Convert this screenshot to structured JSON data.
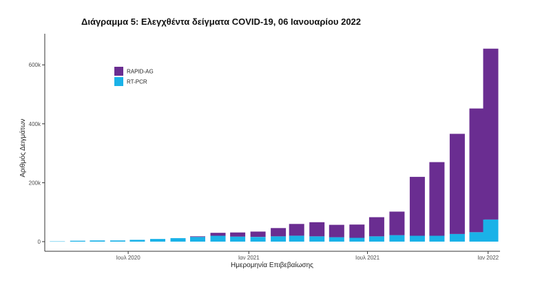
{
  "chart_data": {
    "type": "bar",
    "title": "Διάγραμμα 5: Ελεγχθέντα δείγματα COVID-19, 06 Ιανουαρίου 2022",
    "xlabel": "Ημερομηνία Επιβεβαίωσης",
    "ylabel": "Αριθμός Δειγμάτων",
    "stacked": true,
    "grid": false,
    "legend_position": "top-left",
    "x_ticks": [
      {
        "date": "2020-07-01",
        "label": "Ιουλ 2020"
      },
      {
        "date": "2021-01-01",
        "label": "Ιαν 2021"
      },
      {
        "date": "2021-07-01",
        "label": "Ιουλ 2021"
      },
      {
        "date": "2022-01-01",
        "label": "Ιαν 2022"
      }
    ],
    "y_ticks": [
      {
        "value": 0,
        "label": "0"
      },
      {
        "value": 200000,
        "label": "200k"
      },
      {
        "value": 400000,
        "label": "400k"
      },
      {
        "value": 600000,
        "label": "600k"
      }
    ],
    "xlim": [
      "2020-03-01",
      "2022-01-15"
    ],
    "ylim": [
      0,
      680000
    ],
    "series": [
      {
        "name": "RT-PCR",
        "color": "#1ab2e8",
        "points": [
          {
            "x": "2020-03-15",
            "y": 1000
          },
          {
            "x": "2020-04-15",
            "y": 3000
          },
          {
            "x": "2020-05-15",
            "y": 4000
          },
          {
            "x": "2020-06-15",
            "y": 4000
          },
          {
            "x": "2020-07-15",
            "y": 6000
          },
          {
            "x": "2020-08-15",
            "y": 9000
          },
          {
            "x": "2020-09-15",
            "y": 12000
          },
          {
            "x": "2020-10-15",
            "y": 16000
          },
          {
            "x": "2020-11-15",
            "y": 20000
          },
          {
            "x": "2020-12-15",
            "y": 17000
          },
          {
            "x": "2021-01-15",
            "y": 16000
          },
          {
            "x": "2021-02-15",
            "y": 18000
          },
          {
            "x": "2021-03-15",
            "y": 20000
          },
          {
            "x": "2021-04-15",
            "y": 18000
          },
          {
            "x": "2021-05-15",
            "y": 15000
          },
          {
            "x": "2021-06-15",
            "y": 13000
          },
          {
            "x": "2021-07-15",
            "y": 18000
          },
          {
            "x": "2021-08-15",
            "y": 22000
          },
          {
            "x": "2021-09-15",
            "y": 20000
          },
          {
            "x": "2021-10-15",
            "y": 20000
          },
          {
            "x": "2021-11-15",
            "y": 26000
          },
          {
            "x": "2021-12-15",
            "y": 32000
          },
          {
            "x": "2022-01-05",
            "y": 75000
          }
        ]
      },
      {
        "name": "RAPID-AG",
        "color": "#6a2d91",
        "points": [
          {
            "x": "2020-03-15",
            "y": 0
          },
          {
            "x": "2020-04-15",
            "y": 0
          },
          {
            "x": "2020-05-15",
            "y": 0
          },
          {
            "x": "2020-06-15",
            "y": 0
          },
          {
            "x": "2020-07-15",
            "y": 0
          },
          {
            "x": "2020-08-15",
            "y": 0
          },
          {
            "x": "2020-09-15",
            "y": 0
          },
          {
            "x": "2020-10-15",
            "y": 2000
          },
          {
            "x": "2020-11-15",
            "y": 10000
          },
          {
            "x": "2020-12-15",
            "y": 14000
          },
          {
            "x": "2021-01-15",
            "y": 18000
          },
          {
            "x": "2021-02-15",
            "y": 28000
          },
          {
            "x": "2021-03-15",
            "y": 40000
          },
          {
            "x": "2021-04-15",
            "y": 48000
          },
          {
            "x": "2021-05-15",
            "y": 42000
          },
          {
            "x": "2021-06-15",
            "y": 45000
          },
          {
            "x": "2021-07-15",
            "y": 65000
          },
          {
            "x": "2021-08-15",
            "y": 80000
          },
          {
            "x": "2021-09-15",
            "y": 200000
          },
          {
            "x": "2021-10-15",
            "y": 250000
          },
          {
            "x": "2021-11-15",
            "y": 340000
          },
          {
            "x": "2021-12-15",
            "y": 420000
          },
          {
            "x": "2022-01-05",
            "y": 580000
          }
        ]
      }
    ]
  }
}
